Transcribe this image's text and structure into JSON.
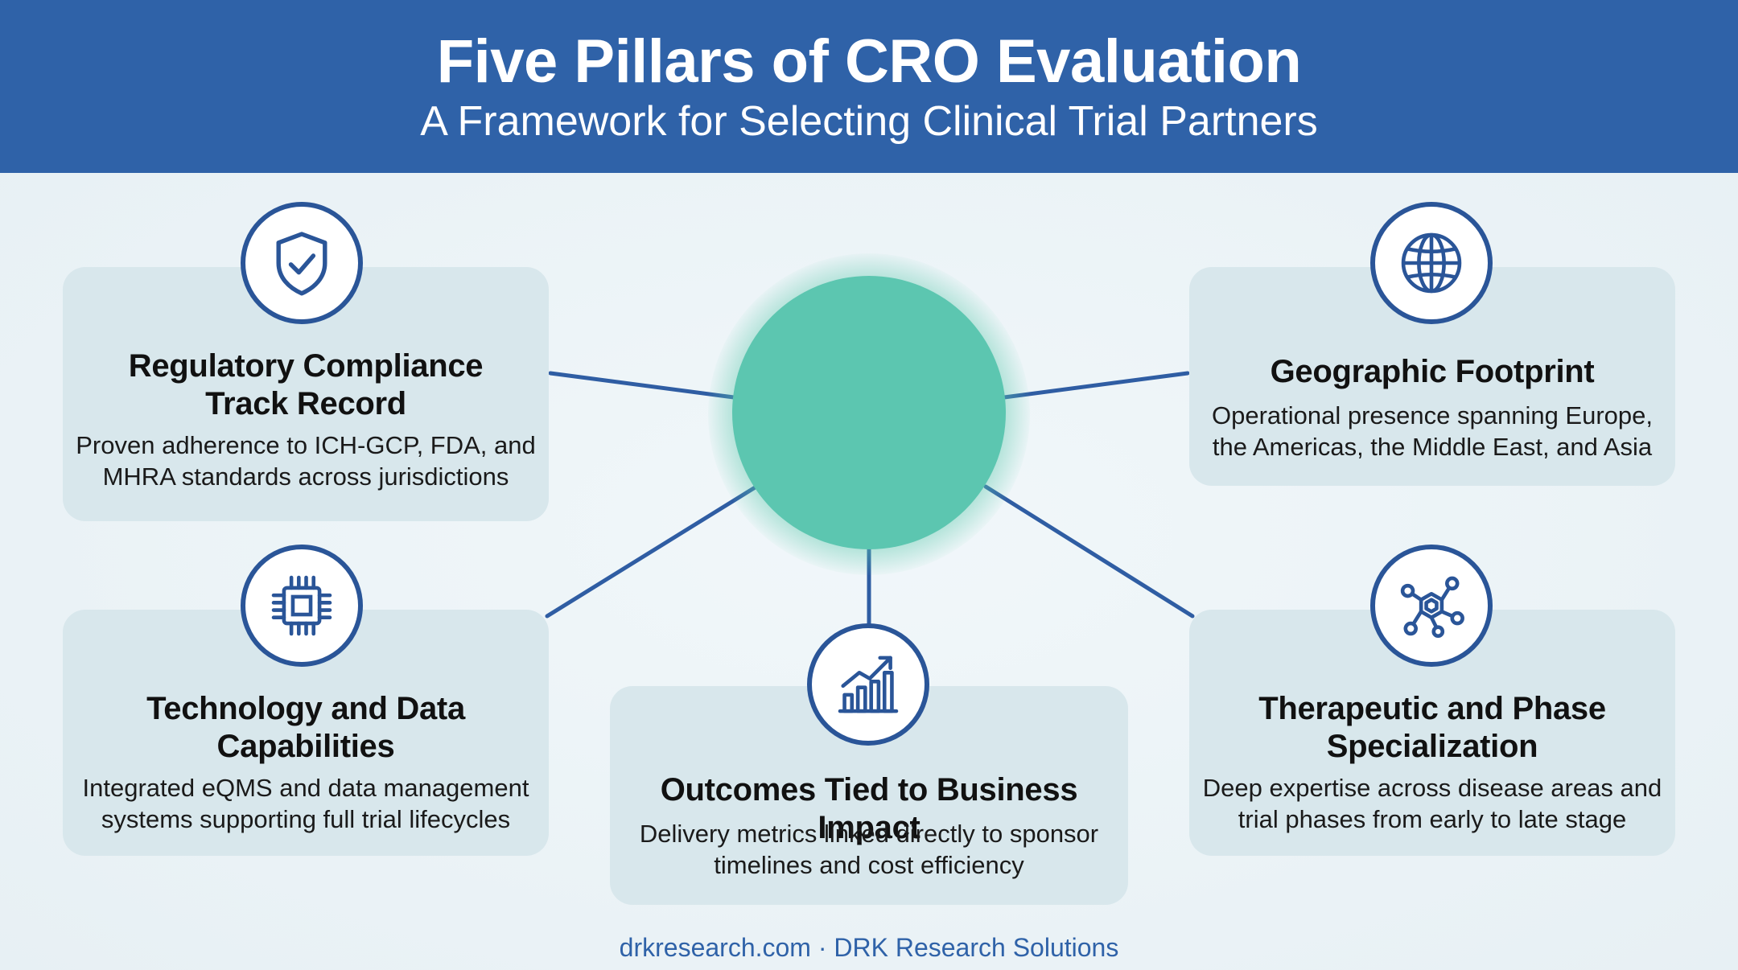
{
  "header": {
    "title": "Five Pillars of CRO Evaluation",
    "subtitle": "A Framework for Selecting Clinical Trial Partners"
  },
  "colors": {
    "header_bg": "#2f62a8",
    "card_bg": "#d8e7ec",
    "icon_ring": "#2a5598",
    "hub": "#5cc6b0",
    "connector": "#2f5da3"
  },
  "pillars": [
    {
      "icon": "shield-check-icon",
      "title_line1": "Regulatory Compliance",
      "title_line2": "Track Record",
      "desc_line1": "Proven adherence to ICH-GCP, FDA, and",
      "desc_line2": "MHRA standards across jurisdictions"
    },
    {
      "icon": "globe-icon",
      "title_line1": "Geographic Footprint",
      "desc_line1": "Operational presence spanning Europe,",
      "desc_line2": "the Americas, the Middle East, and Asia"
    },
    {
      "icon": "chip-icon",
      "title_line1": "Technology and Data",
      "title_line2": "Capabilities",
      "desc_line1": "Integrated eQMS and data management",
      "desc_line2": "systems supporting full trial lifecycles"
    },
    {
      "icon": "growth-chart-icon",
      "title_line1": "Outcomes Tied to Business Impact",
      "desc_line1": "Delivery metrics linked directly to sponsor",
      "desc_line2": "timelines and cost efficiency"
    },
    {
      "icon": "molecule-icon",
      "title_line1": "Therapeutic and Phase",
      "title_line2": "Specialization",
      "desc_line1": "Deep expertise across disease areas and",
      "desc_line2": "trial phases from early to late stage"
    }
  ],
  "footer": {
    "text": "drkresearch.com · DRK Research Solutions"
  }
}
